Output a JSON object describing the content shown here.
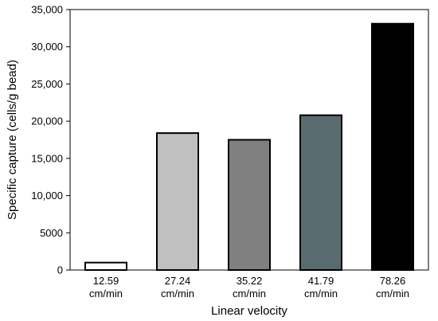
{
  "chart_data": {
    "type": "bar",
    "xlabel": "Linear velocity",
    "ylabel": "Specific capture (cells/g bead)",
    "categories": [
      [
        "12.59",
        "cm/min"
      ],
      [
        "27.24",
        "cm/min"
      ],
      [
        "35.22",
        "cm/min"
      ],
      [
        "41.79",
        "cm/min"
      ],
      [
        "78.26",
        "cm/min"
      ]
    ],
    "values": [
      1000,
      18400,
      17500,
      20800,
      33100
    ],
    "bar_colors": [
      "#ffffff",
      "#c0c0c0",
      "#808080",
      "#5a6b6f",
      "#000000"
    ],
    "ylim": [
      0,
      35000
    ],
    "yticks": [
      0,
      5000,
      10000,
      15000,
      20000,
      25000,
      30000,
      35000
    ],
    "ytick_labels": [
      "0",
      "5000",
      "10,000",
      "15,000",
      "20,000",
      "25,000",
      "30,000",
      "35,000"
    ],
    "grid": false,
    "legend": "none"
  }
}
